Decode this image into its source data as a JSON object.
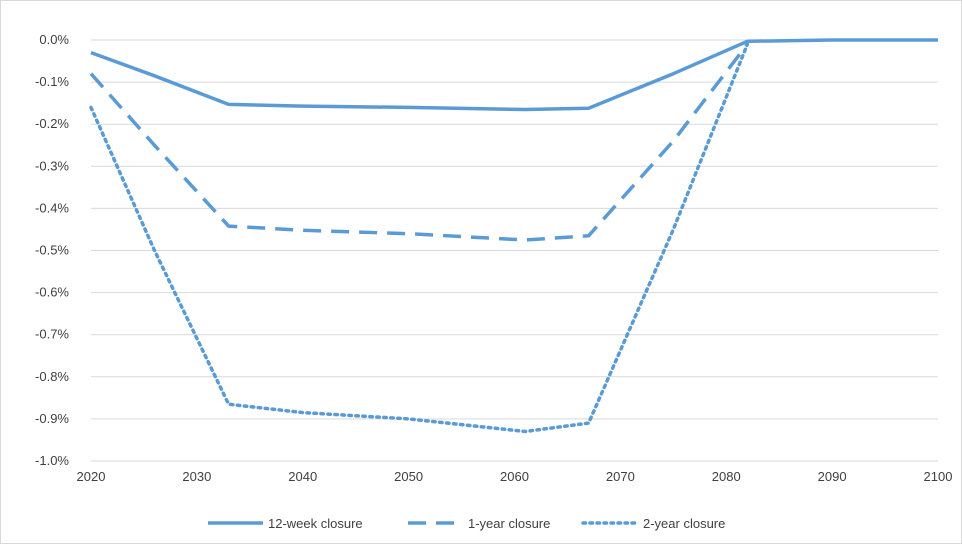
{
  "chart_data": {
    "type": "line",
    "title": "",
    "xlabel": "",
    "ylabel": "",
    "xlim": [
      2020,
      2100
    ],
    "ylim": [
      -1.0,
      0.0
    ],
    "x_ticks": [
      2020,
      2030,
      2040,
      2050,
      2060,
      2070,
      2080,
      2090,
      2100
    ],
    "x_tick_labels": [
      "2020",
      "2030",
      "2040",
      "2050",
      "2060",
      "2070",
      "2080",
      "2090",
      "2100"
    ],
    "y_ticks": [
      0.0,
      -0.1,
      -0.2,
      -0.3,
      -0.4,
      -0.5,
      -0.6,
      -0.7,
      -0.8,
      -0.9,
      -1.0
    ],
    "y_tick_labels": [
      "0.0%",
      "-0.1%",
      "-0.2%",
      "-0.3%",
      "-0.4%",
      "-0.5%",
      "-0.6%",
      "-0.7%",
      "-0.8%",
      "-0.9%",
      "-1.0%"
    ],
    "grid": "horizontal",
    "legend_position": "bottom",
    "series": [
      {
        "name": "12-week closure",
        "style": "solid",
        "color": "#5b9bd5",
        "points": [
          [
            2020,
            -0.03
          ],
          [
            2026,
            -0.085
          ],
          [
            2033,
            -0.153
          ],
          [
            2040,
            -0.157
          ],
          [
            2050,
            -0.16
          ],
          [
            2061,
            -0.165
          ],
          [
            2067,
            -0.162
          ],
          [
            2075,
            -0.08
          ],
          [
            2082,
            -0.003
          ],
          [
            2090,
            0.0
          ],
          [
            2100,
            0.0
          ]
        ]
      },
      {
        "name": "1-year closure",
        "style": "dashed",
        "color": "#5b9bd5",
        "points": [
          [
            2020,
            -0.08
          ],
          [
            2026,
            -0.25
          ],
          [
            2033,
            -0.442
          ],
          [
            2040,
            -0.452
          ],
          [
            2050,
            -0.46
          ],
          [
            2061,
            -0.475
          ],
          [
            2067,
            -0.465
          ],
          [
            2075,
            -0.24
          ],
          [
            2082,
            -0.01
          ]
        ]
      },
      {
        "name": "2-year closure",
        "style": "dotted",
        "color": "#5b9bd5",
        "points": [
          [
            2020,
            -0.16
          ],
          [
            2026,
            -0.5
          ],
          [
            2033,
            -0.865
          ],
          [
            2040,
            -0.885
          ],
          [
            2050,
            -0.9
          ],
          [
            2061,
            -0.93
          ],
          [
            2067,
            -0.91
          ],
          [
            2075,
            -0.45
          ],
          [
            2082,
            -0.01
          ]
        ]
      }
    ]
  }
}
